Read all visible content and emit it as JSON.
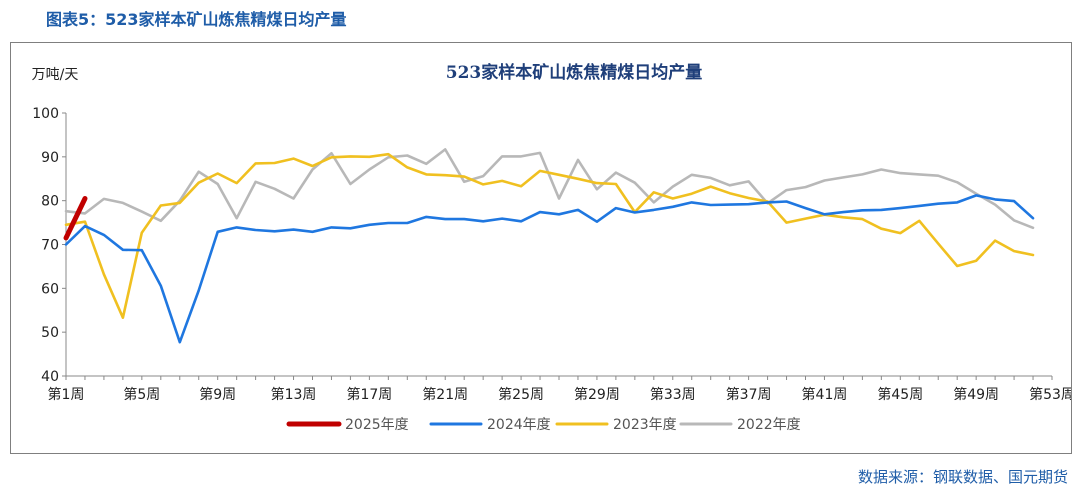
{
  "figure_caption": "图表5：523家样本矿山炼焦精煤日均产量",
  "source_note": "数据来源：钢联数据、国元期货",
  "colors": {
    "caption_blue": "#1f5da8",
    "title_navy": "#1f3f7a"
  },
  "chart_data": {
    "type": "line",
    "title": "523家样本矿山炼焦精煤日均产量",
    "ylabel": "万吨/天",
    "xlabel": "",
    "ylim": [
      40,
      100
    ],
    "yticks": [
      40,
      50,
      60,
      70,
      80,
      90,
      100
    ],
    "x_tick_labels": [
      "第1周",
      "第5周",
      "第9周",
      "第13周",
      "第17周",
      "第21周",
      "第25周",
      "第29周",
      "第33周",
      "第37周",
      "第41周",
      "第45周",
      "第49周",
      "第53周"
    ],
    "x_tick_weeks": [
      1,
      5,
      9,
      13,
      17,
      21,
      25,
      29,
      33,
      37,
      41,
      45,
      49,
      53
    ],
    "x_range": [
      1,
      53
    ],
    "grid": false,
    "legend_position": "bottom",
    "series": [
      {
        "name": "2025年度",
        "color": "#c00000",
        "width": 5,
        "x": [
          1,
          2
        ],
        "values": [
          71.5,
          80.5
        ]
      },
      {
        "name": "2024年度",
        "color": "#1f77e0",
        "width": 2.6,
        "x": [
          1,
          2,
          3,
          4,
          5,
          6,
          7,
          8,
          9,
          10,
          11,
          12,
          13,
          14,
          15,
          16,
          17,
          18,
          19,
          20,
          21,
          22,
          23,
          24,
          25,
          26,
          27,
          28,
          29,
          30,
          31,
          32,
          33,
          34,
          35,
          36,
          37,
          38,
          39,
          40,
          41,
          42,
          43,
          44,
          45,
          46,
          47,
          48,
          49,
          50,
          51,
          52
        ],
        "values": [
          70.0,
          74.2,
          72.2,
          68.8,
          68.7,
          60.6,
          47.7,
          59.5,
          72.9,
          73.9,
          73.3,
          73.0,
          73.4,
          72.9,
          73.9,
          73.7,
          74.5,
          74.9,
          74.9,
          76.3,
          75.8,
          75.8,
          75.3,
          75.9,
          75.3,
          77.4,
          76.9,
          77.9,
          75.2,
          78.3,
          77.3,
          77.9,
          78.6,
          79.6,
          79.0,
          79.1,
          79.2,
          79.6,
          79.8,
          78.3,
          76.9,
          77.4,
          77.8,
          77.9,
          78.3,
          78.8,
          79.3,
          79.6,
          81.2,
          80.3,
          79.9,
          76.0
        ]
      },
      {
        "name": "2023年度",
        "color": "#f0c020",
        "width": 2.6,
        "x": [
          1,
          2,
          3,
          4,
          5,
          6,
          7,
          8,
          9,
          10,
          11,
          12,
          13,
          14,
          15,
          16,
          17,
          18,
          19,
          20,
          21,
          22,
          23,
          24,
          25,
          26,
          27,
          28,
          29,
          30,
          31,
          32,
          33,
          34,
          35,
          36,
          37,
          38,
          39,
          40,
          41,
          42,
          43,
          44,
          45,
          46,
          47,
          48,
          49,
          50,
          51,
          52
        ],
        "values": [
          74.5,
          75.2,
          63.2,
          53.3,
          72.7,
          78.9,
          79.5,
          84.1,
          86.2,
          84.0,
          88.5,
          88.6,
          89.6,
          87.9,
          89.9,
          90.1,
          90.0,
          90.6,
          87.6,
          86.0,
          85.8,
          85.5,
          83.7,
          84.5,
          83.3,
          86.8,
          85.9,
          85.0,
          84.0,
          83.8,
          77.4,
          81.9,
          80.5,
          81.6,
          83.2,
          81.7,
          80.6,
          79.8,
          75.0,
          75.9,
          76.8,
          76.2,
          75.8,
          73.6,
          72.6,
          75.4,
          70.2,
          65.1,
          66.3,
          70.9,
          68.5,
          67.6
        ]
      },
      {
        "name": "2022年度",
        "color": "#b8b8b8",
        "width": 2.6,
        "x": [
          1,
          2,
          3,
          4,
          5,
          6,
          7,
          8,
          9,
          10,
          11,
          12,
          13,
          14,
          15,
          16,
          17,
          18,
          19,
          20,
          21,
          22,
          23,
          24,
          25,
          26,
          27,
          28,
          29,
          30,
          31,
          32,
          33,
          34,
          35,
          36,
          37,
          38,
          39,
          40,
          41,
          42,
          43,
          44,
          45,
          46,
          47,
          48,
          49,
          50,
          51,
          52
        ],
        "values": [
          77.6,
          77.1,
          80.4,
          79.5,
          77.5,
          75.4,
          80.0,
          86.6,
          83.8,
          76.0,
          84.3,
          82.7,
          80.5,
          87.1,
          90.8,
          83.8,
          87.1,
          89.9,
          90.3,
          88.4,
          91.7,
          84.3,
          85.6,
          90.1,
          90.1,
          90.9,
          80.5,
          89.3,
          82.6,
          86.4,
          84.1,
          79.6,
          83.2,
          85.9,
          85.2,
          83.5,
          84.4,
          79.4,
          82.4,
          83.1,
          84.6,
          85.3,
          86.0,
          87.1,
          86.3,
          86.0,
          85.7,
          84.2,
          81.6,
          79.1,
          75.5,
          73.8
        ]
      }
    ]
  }
}
